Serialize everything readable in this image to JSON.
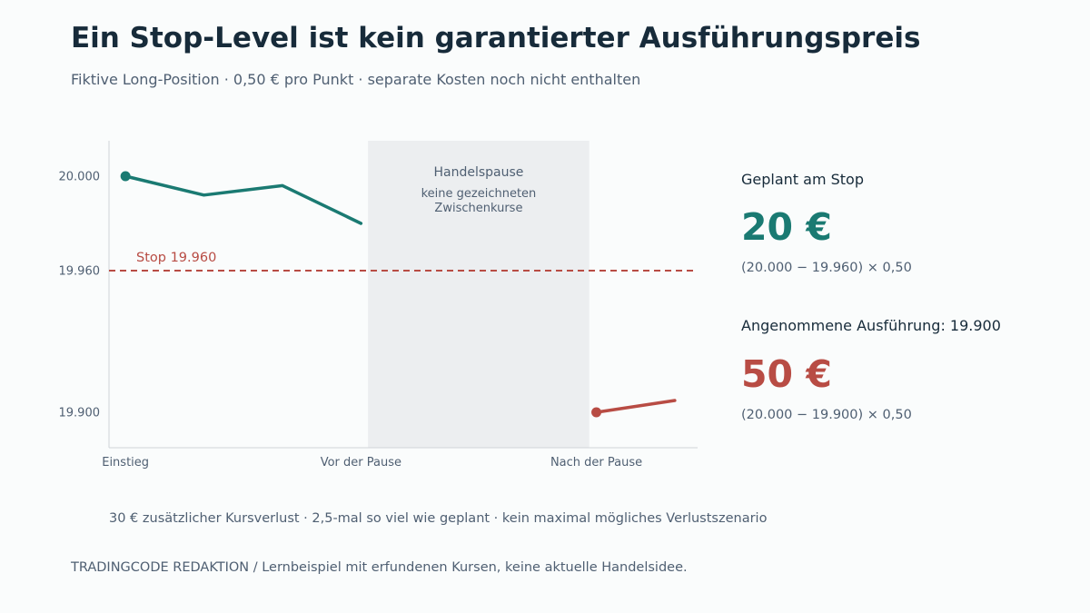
{
  "header": {
    "title": "Ein Stop-Level ist kein garantierter Ausführungspreis",
    "subtitle": "Fiktive Long-Position · 0,50 € pro Punkt · separate Kosten noch nicht enthalten"
  },
  "colors": {
    "teal": "#1a7a72",
    "red": "#b84c44",
    "pause_band": "#eceef0",
    "axis": "#d0d4d8",
    "text_muted": "#4f5f72",
    "text_dark": "#172b3a"
  },
  "chart_data": {
    "type": "line",
    "x_categories": [
      "Einstieg",
      "Vor der Pause",
      "Nach der Pause"
    ],
    "y_ticks": [
      {
        "value": 20000,
        "label": "20.000"
      },
      {
        "value": 19960,
        "label": "19.960"
      },
      {
        "value": 19900,
        "label": "19.900"
      }
    ],
    "ylim": [
      19885,
      20015
    ],
    "xlim": [
      -0.07,
      2.43
    ],
    "series": [
      {
        "color": "#1a7a72",
        "points": [
          {
            "x": 0,
            "y": 20000
          },
          {
            "x": 0.333,
            "y": 19992
          },
          {
            "x": 0.667,
            "y": 19996
          },
          {
            "x": 1,
            "y": 19980
          }
        ]
      },
      {
        "color": "#b84c44",
        "points": [
          {
            "x": 2,
            "y": 19900
          },
          {
            "x": 2.333,
            "y": 19905
          }
        ]
      }
    ],
    "stop": {
      "value": 19960,
      "label": "Stop 19.960"
    },
    "pause": {
      "x_start": 1.03,
      "x_end": 1.97,
      "title": "Handelspause",
      "note_line1": "keine gezeichneten",
      "note_line2": "Zwischenkurse"
    }
  },
  "side": {
    "planned_label": "Geplant am Stop",
    "planned_value": "20 €",
    "planned_formula": "(20.000 − 19.960) × 0,50",
    "executed_label": "Angenommene Ausführung: 19.900",
    "executed_value": "50 €",
    "executed_formula": "(20.000 − 19.900) × 0,50"
  },
  "footer": {
    "note": "30 € zusätzlicher Kursverlust · 2,5-mal so viel wie geplant · kein maximal mögliches Verlustszenario",
    "source": "TRADINGCODE REDAKTION  /  Lernbeispiel mit erfundenen Kursen, keine aktuelle Handelsidee."
  }
}
